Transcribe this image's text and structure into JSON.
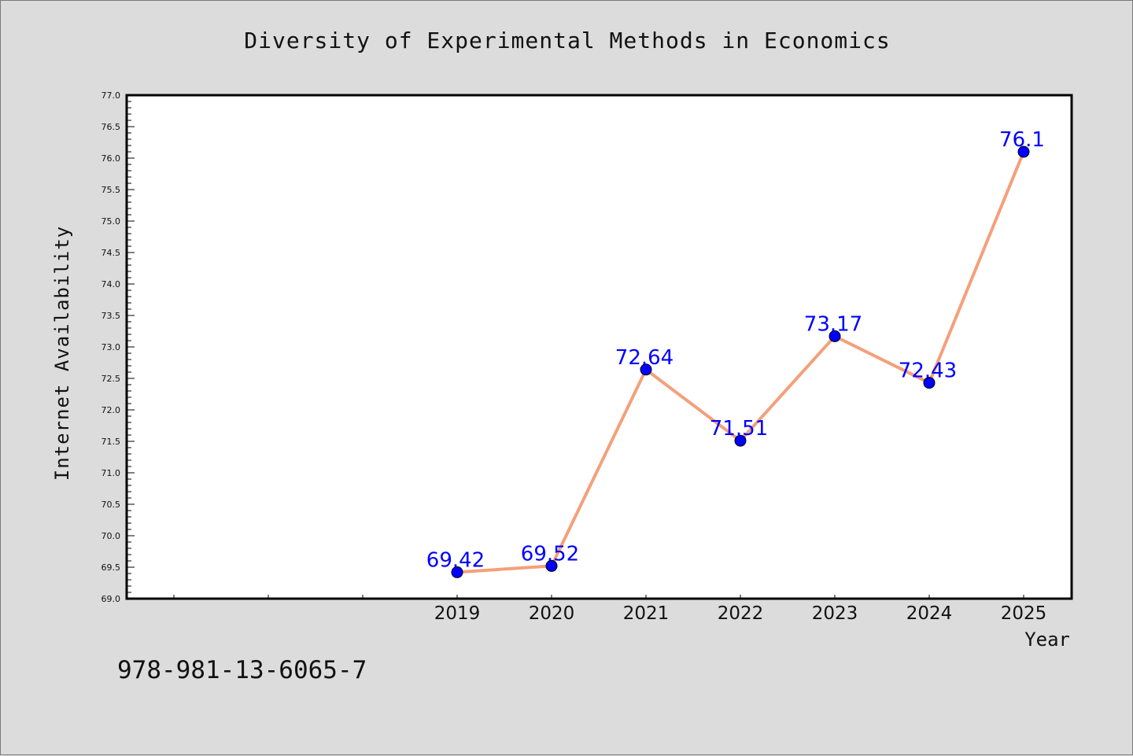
{
  "chart_data": {
    "type": "line",
    "title": "Diversity of Experimental Methods in Economics",
    "xlabel": "Year",
    "ylabel": "Internet Availability",
    "categories": [
      "2019",
      "2020",
      "2021",
      "2022",
      "2023",
      "2024",
      "2025"
    ],
    "series": [
      {
        "values": [
          69.42,
          69.52,
          72.64,
          71.51,
          73.17,
          72.43,
          76.1
        ],
        "labels": [
          "69.42",
          "69.52",
          "72.64",
          "71.51",
          "73.17",
          "72.43",
          "76.1"
        ],
        "line_color": "#f4a07a",
        "marker_color": "#0000ff"
      }
    ],
    "ylim": [
      69.0,
      77.0
    ],
    "yticks": [
      "69.0",
      "69.5",
      "70.0",
      "70.5",
      "71.0",
      "71.5",
      "72.0",
      "72.5",
      "73.0",
      "73.5",
      "74.0",
      "74.5",
      "75.0",
      "75.5",
      "76.0",
      "76.5",
      "77.0"
    ],
    "grid": false,
    "legend": "none",
    "colors": {
      "background": "#dcdcdc",
      "plot_area": "#ffffff",
      "axis": "#000000",
      "label": "#0000ff"
    }
  },
  "footer": {
    "isbn": "978-981-13-6065-7"
  }
}
